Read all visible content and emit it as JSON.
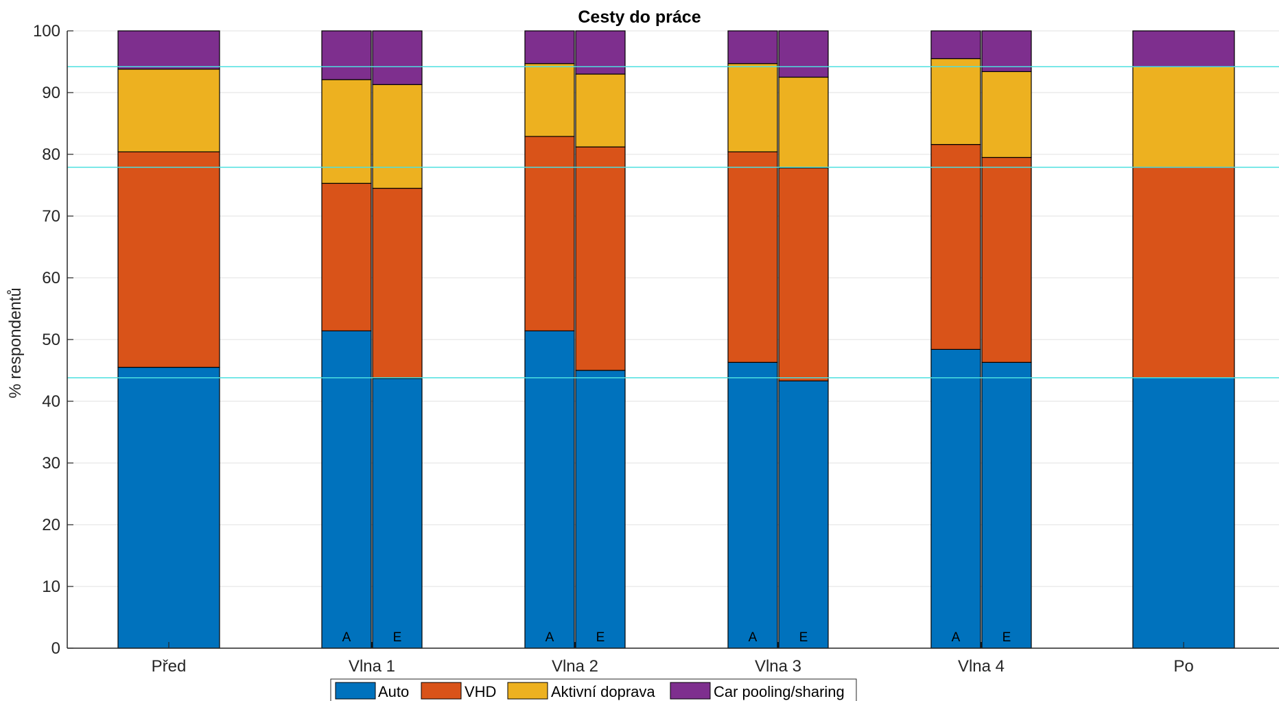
{
  "chart_data": {
    "type": "bar",
    "stacked": true,
    "title": "Cesty do práce",
    "ylabel": "% respondentů",
    "xlabel": "",
    "ylim": [
      0,
      100
    ],
    "yticks": [
      0,
      10,
      20,
      30,
      40,
      50,
      60,
      70,
      80,
      90,
      100
    ],
    "grid": true,
    "legend_position": "bottom",
    "categories": [
      "Před",
      "Vlna 1",
      "Vlna 2",
      "Vlna 3",
      "Vlna 4",
      "Po"
    ],
    "series": [
      {
        "name": "Auto",
        "color": "#0072BD"
      },
      {
        "name": "VHD",
        "color": "#D95319"
      },
      {
        "name": "Aktivní doprava",
        "color": "#EDB120"
      },
      {
        "name": "Car pooling/sharing",
        "color": "#7E2F8E"
      }
    ],
    "bars": [
      {
        "category": "Před",
        "tag": "",
        "values": [
          45.5,
          34.9,
          13.4,
          6.2
        ]
      },
      {
        "category": "Vlna 1",
        "tag": "A",
        "values": [
          51.4,
          23.9,
          16.8,
          7.9
        ]
      },
      {
        "category": "Vlna 1",
        "tag": "E",
        "values": [
          43.7,
          30.8,
          16.8,
          8.7
        ]
      },
      {
        "category": "Vlna 2",
        "tag": "A",
        "values": [
          51.4,
          31.5,
          11.8,
          5.3
        ]
      },
      {
        "category": "Vlna 2",
        "tag": "E",
        "values": [
          45.0,
          36.2,
          11.8,
          7.0
        ]
      },
      {
        "category": "Vlna 3",
        "tag": "A",
        "values": [
          46.3,
          34.1,
          14.3,
          5.3
        ]
      },
      {
        "category": "Vlna 3",
        "tag": "E",
        "values": [
          43.3,
          34.5,
          14.7,
          7.5
        ]
      },
      {
        "category": "Vlna 4",
        "tag": "A",
        "values": [
          48.4,
          33.2,
          13.9,
          4.5
        ]
      },
      {
        "category": "Vlna 4",
        "tag": "E",
        "values": [
          46.3,
          33.2,
          13.9,
          6.6
        ]
      },
      {
        "category": "Po",
        "tag": "",
        "values": [
          43.8,
          34.1,
          16.3,
          5.8
        ]
      }
    ],
    "reference_lines": [
      43.8,
      77.9,
      94.2
    ],
    "reference_line_color": "#4DE0E0"
  }
}
